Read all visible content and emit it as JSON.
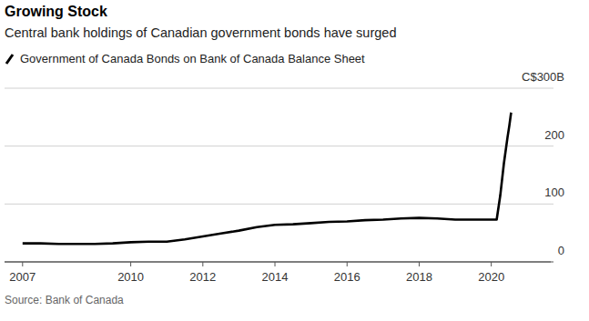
{
  "chart_data": {
    "type": "line",
    "title": "Growing Stock",
    "subtitle": "Central bank holdings of Canadian government bonds have surged",
    "source": "Source: Bank of Canada",
    "x": [
      2007.0,
      2007.5,
      2008.0,
      2008.5,
      2009.0,
      2009.5,
      2010.0,
      2010.5,
      2011.0,
      2011.5,
      2012.0,
      2012.5,
      2013.0,
      2013.5,
      2014.0,
      2014.5,
      2015.0,
      2015.5,
      2016.0,
      2016.5,
      2017.0,
      2017.5,
      2018.0,
      2018.5,
      2019.0,
      2019.5,
      2020.0,
      2020.15,
      2020.25,
      2020.35,
      2020.45,
      2020.5,
      2020.55
    ],
    "series": [
      {
        "name": "Government of Canada Bonds on Bank of Canada Balance Sheet",
        "color": "#000000",
        "values": [
          32,
          32,
          31,
          31,
          31,
          32,
          34,
          35,
          35,
          39,
          44,
          49,
          54,
          60,
          64,
          65,
          67,
          69,
          70,
          72,
          73,
          75,
          76,
          75,
          73,
          73,
          73,
          73,
          115,
          170,
          215,
          235,
          258
        ]
      }
    ],
    "xlim": [
      2006.5,
      2021.65
    ],
    "xticks": [
      2007,
      2010,
      2012,
      2014,
      2016,
      2018,
      2020
    ],
    "ylim": [
      0,
      300
    ],
    "yticks": [
      0,
      100,
      200,
      {
        "value": 300,
        "label": "C$300B"
      }
    ],
    "grid": true
  }
}
